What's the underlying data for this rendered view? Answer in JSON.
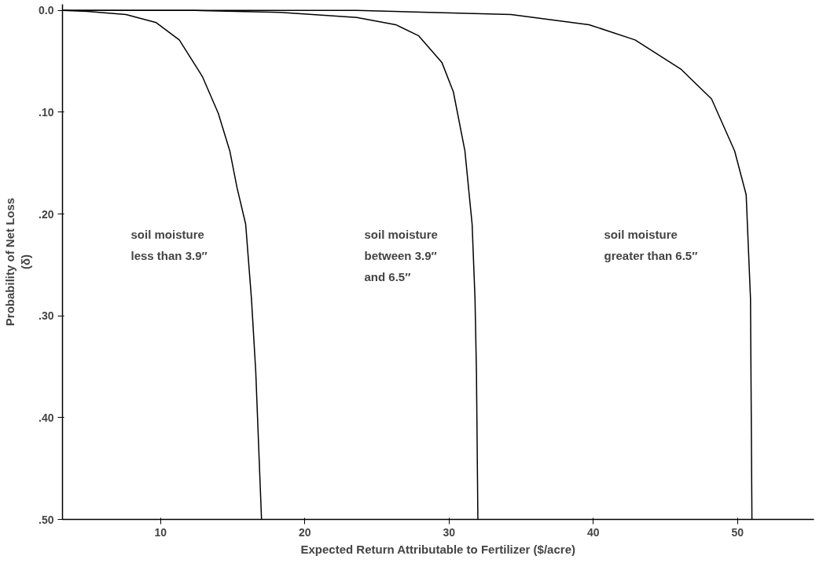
{
  "chart_data": {
    "type": "line",
    "xlabel": "Expected Return Attributable to Fertilizer ($/acre)",
    "ylabel": "Probability of Net Loss\n(δ)",
    "xlim": [
      3.2,
      55.3
    ],
    "ylim": [
      0.5,
      -0.006
    ],
    "xticks": [
      10,
      20,
      30,
      40,
      50
    ],
    "yticks": [
      {
        "value": 0,
        "label": "0.0"
      },
      {
        "value": 0.1,
        "label": ".10"
      },
      {
        "value": 0.2,
        "label": ".20"
      },
      {
        "value": 0.3,
        "label": ".30"
      },
      {
        "value": 0.4,
        "label": ".40"
      },
      {
        "value": 0.5,
        "label": ".50"
      }
    ],
    "grid": false,
    "marker": "none",
    "line_style": "solid",
    "series": [
      {
        "color": "#000000",
        "x": [
          3.2,
          4.9,
          7.6,
          9.7,
          11.3,
          12.9,
          14.0,
          14.8,
          15.3,
          15.9,
          16.3,
          16.6,
          16.8,
          17.0
        ],
        "values": [
          0,
          0.001,
          0.004,
          0.012,
          0.029,
          0.065,
          0.101,
          0.138,
          0.174,
          0.21,
          0.283,
          0.355,
          0.428,
          0.5
        ]
      },
      {
        "color": "#000000",
        "x": [
          3.2,
          12.4,
          18.3,
          23.6,
          26.3,
          27.9,
          29.5,
          30.3,
          31.1,
          31.6,
          31.8,
          31.9,
          32.0
        ],
        "values": [
          0,
          0,
          0.002,
          0.007,
          0.014,
          0.025,
          0.051,
          0.08,
          0.138,
          0.21,
          0.283,
          0.355,
          0.5
        ]
      },
      {
        "color": "#000000",
        "x": [
          3.2,
          23.6,
          34.3,
          39.7,
          42.9,
          46.1,
          48.2,
          49.8,
          50.6,
          50.9,
          51.0
        ],
        "values": [
          0,
          0,
          0.004,
          0.014,
          0.029,
          0.058,
          0.087,
          0.138,
          0.181,
          0.283,
          0.5
        ]
      }
    ],
    "annotations": [
      "soil moisture\nless than 3.9″",
      "soil moisture\nbetween 3.9″\nand 6.5″",
      "soil moisture\ngreater than 6.5″"
    ]
  }
}
